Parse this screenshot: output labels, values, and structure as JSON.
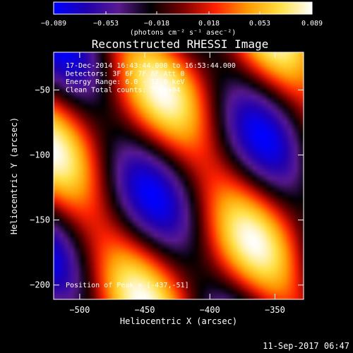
{
  "chart_data": {
    "type": "heatmap",
    "title": "Reconstructed RHESSI Image",
    "xlabel": "Heliocentric X (arcsec)",
    "ylabel": "Heliocentric Y (arcsec)",
    "xlim": [
      -520,
      -328
    ],
    "ylim": [
      -211,
      -21
    ],
    "x_ticks": [
      -500,
      -450,
      -400,
      -350
    ],
    "x_tick_labels": [
      "−500",
      "−450",
      "−400",
      "−350"
    ],
    "y_ticks": [
      -50,
      -100,
      -150,
      -200
    ],
    "y_tick_labels": [
      "−50",
      "−100",
      "−150",
      "−200"
    ],
    "colorbar": {
      "min": -0.089,
      "max": 0.089,
      "ticks": [
        -0.089,
        -0.053,
        -0.018,
        0.018,
        0.053,
        0.089
      ],
      "tick_labels": [
        "−0.089",
        "−0.053",
        "−0.018",
        "0.018",
        "0.053",
        "0.089"
      ],
      "units_label": "(photons cm⁻² s⁻¹ asec⁻²)",
      "colormap": [
        "#0000ff",
        "#2000b0",
        "#5a1a90",
        "#000000",
        "#7a0000",
        "#ff2000",
        "#ff9a00",
        "#ffe040",
        "#ffffff"
      ]
    },
    "annotations": [
      "17-Dec-2014 16:43:44.000 to 16:53:44.000",
      "Detectors: 3F 6F 7F 8F Att 0",
      "Energy Range: 6.0 - 12.0 keV",
      "Clean    Total counts: 7.5e+04"
    ],
    "peak_label": "Position of Peak = [-437,-51]",
    "peak": [
      -437,
      -51
    ],
    "pattern": {
      "description": "diagonal fringe pattern",
      "k1": [
        0.056,
        0.034
      ],
      "k2": [
        -0.022,
        0.041
      ],
      "phase_ref": [
        -437,
        -51
      ]
    }
  },
  "footer": {
    "timestamp": "11-Sep-2017 06:47"
  }
}
